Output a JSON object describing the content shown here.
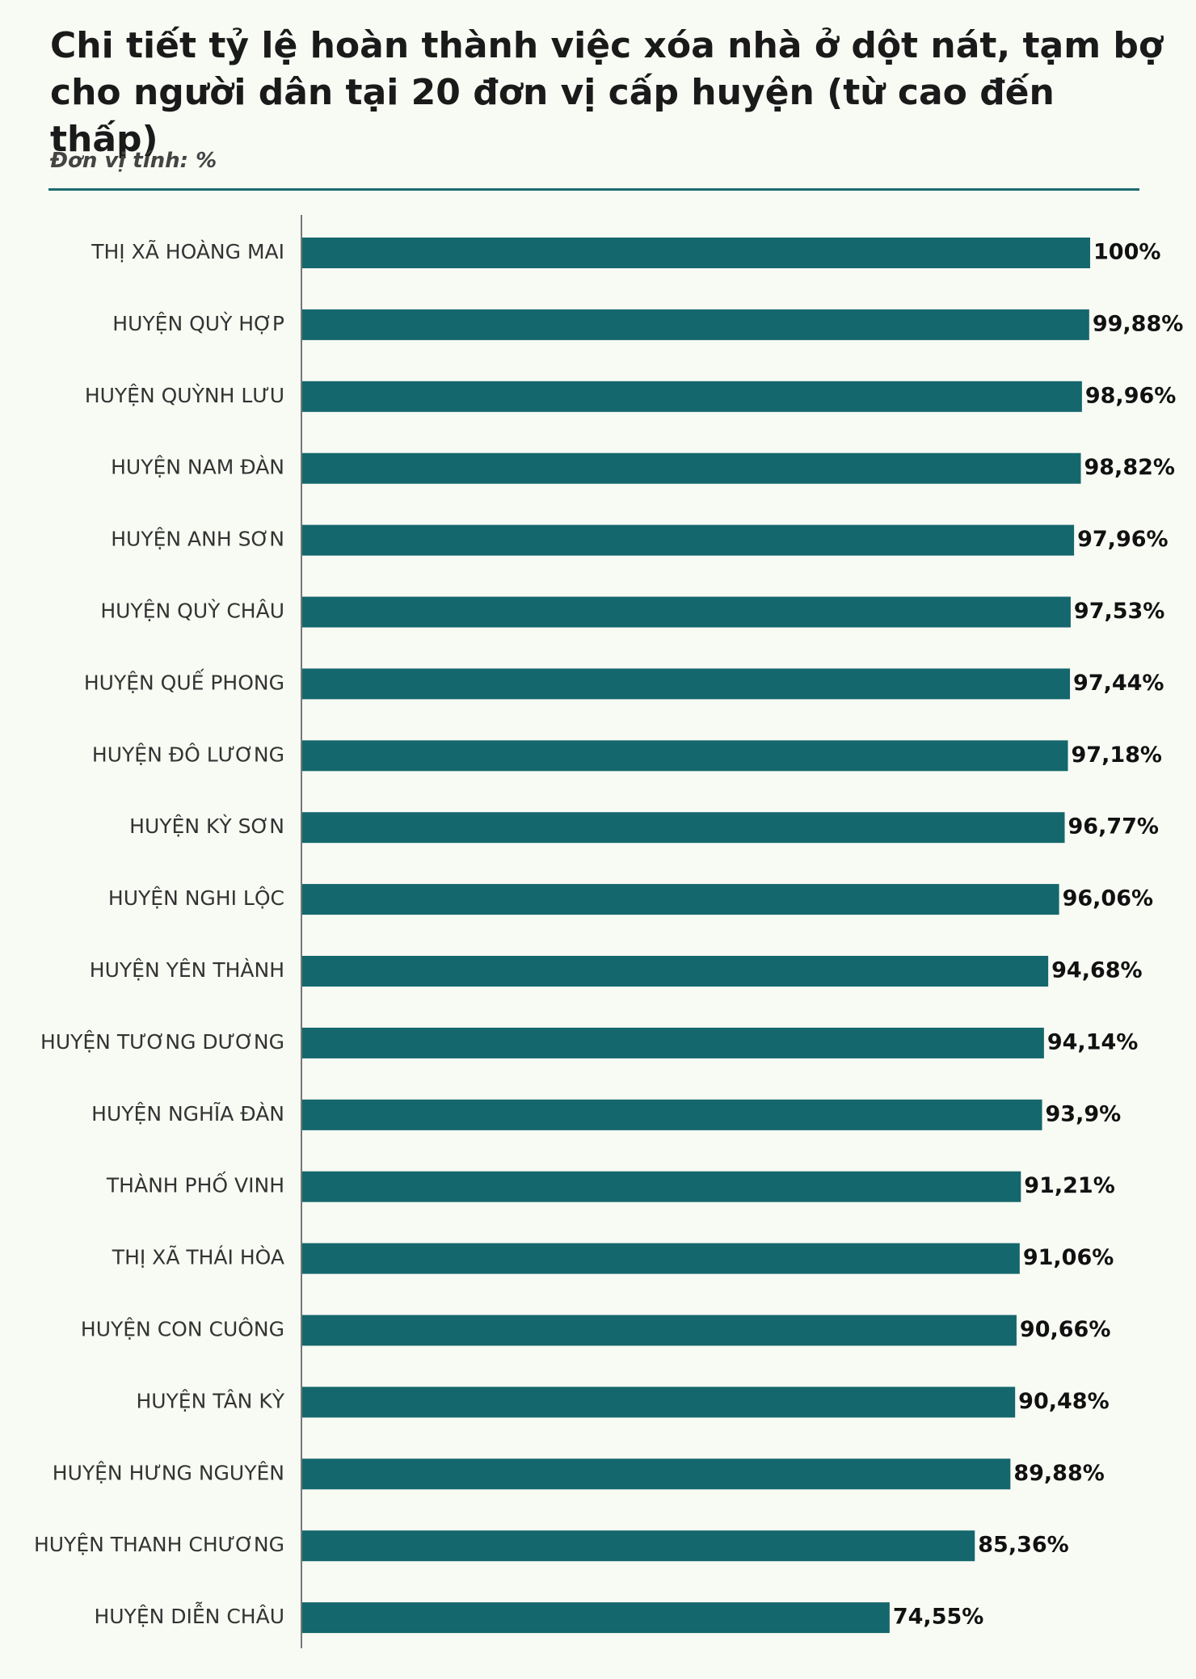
{
  "header": {
    "title": "Chi tiết tỷ lệ hoàn thành việc xóa nhà ở dột nát, tạm bợ cho người dân tại 20 đơn vị cấp huyện (từ cao đến thấp)",
    "unit": "Đơn vị tính: %"
  },
  "colors": {
    "bar": "#14676c",
    "axis": "#777777",
    "rule": "#1d6b70"
  },
  "chart_data": {
    "type": "bar",
    "orientation": "horizontal",
    "title": "Chi tiết tỷ lệ hoàn thành việc xóa nhà ở dột nát, tạm bợ cho người dân tại 20 đơn vị cấp huyện (từ cao đến thấp)",
    "categories": [
      "THỊ XÃ HOÀNG MAI",
      "HUYỆN QUỲ HỢP",
      "HUYỆN QUỲNH LƯU",
      "HUYỆN NAM ĐÀN",
      "HUYỆN ANH SƠN",
      "HUYỆN QUỲ CHÂU",
      "HUYỆN QUẾ PHONG",
      "HUYỆN ĐÔ LƯƠNG",
      "HUYỆN KỲ SƠN",
      "HUYỆN NGHI LỘC",
      "HUYỆN YÊN THÀNH",
      "HUYỆN TƯƠNG DƯƠNG",
      "HUYỆN NGHĨA ĐÀN",
      "THÀNH PHỐ VINH",
      "THỊ XÃ THÁI HÒA",
      "HUYỆN CON CUÔNG",
      "HUYỆN TÂN KỲ",
      "HUYỆN HƯNG NGUYÊN",
      "HUYỆN THANH CHƯƠNG",
      "HUYỆN DIỄN CHÂU"
    ],
    "values": [
      100,
      99.88,
      98.96,
      98.82,
      97.96,
      97.53,
      97.44,
      97.18,
      96.77,
      96.06,
      94.68,
      94.14,
      93.9,
      91.21,
      91.06,
      90.66,
      90.48,
      89.88,
      85.36,
      74.55
    ],
    "value_labels": [
      "100%",
      "99,88%",
      "98,96%",
      "98,82%",
      "97,96%",
      "97,53%",
      "97,44%",
      "97,18%",
      "96,77%",
      "96,06%",
      "94,68%",
      "94,14%",
      "93,9%",
      "91,21%",
      "91,06%",
      "90,66%",
      "90,48%",
      "89,88%",
      "85,36%",
      "74,55%"
    ],
    "xlim": [
      0,
      100
    ],
    "grid": false,
    "legend": "none"
  }
}
